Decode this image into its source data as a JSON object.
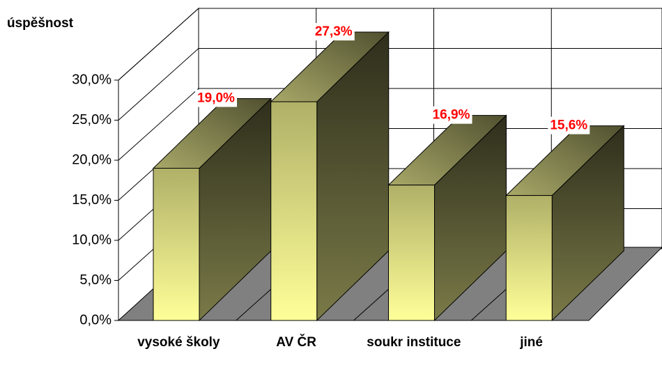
{
  "chart_data": {
    "type": "bar3d",
    "y_label": "úspěšnost",
    "categories": [
      "vysoké školy",
      "AV ČR",
      "soukr instituce",
      "jiné"
    ],
    "values": [
      19.0,
      27.3,
      16.9,
      15.6
    ],
    "value_labels": [
      "19,0%",
      "27,3%",
      "16,9%",
      "15,6%"
    ],
    "ylim": [
      0,
      30
    ],
    "yticks": [
      {
        "value": 0,
        "label": "0,0%"
      },
      {
        "value": 5,
        "label": "5,0%"
      },
      {
        "value": 10,
        "label": "10,0%"
      },
      {
        "value": 15,
        "label": "15,0%"
      },
      {
        "value": 20,
        "label": "20,0%"
      },
      {
        "value": 25,
        "label": "25,0%"
      },
      {
        "value": 30,
        "label": "30,0%"
      }
    ],
    "grid": true,
    "label_color": "#ff0000"
  }
}
